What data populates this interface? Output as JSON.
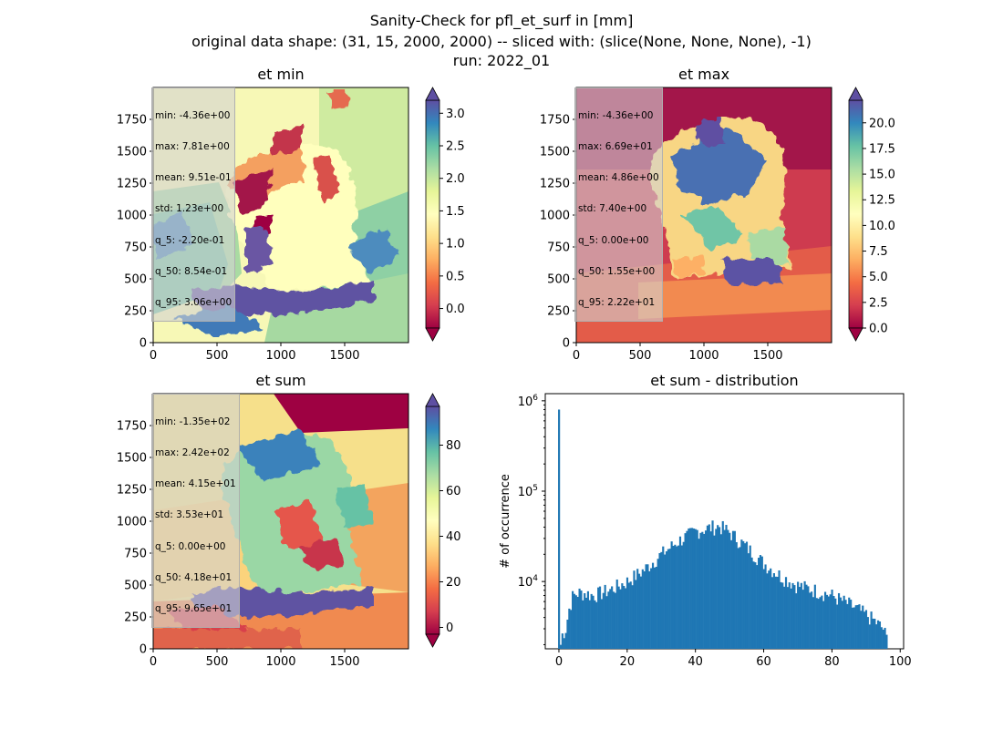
{
  "figure": {
    "title_lines": [
      "Sanity-Check for pfl_et_surf in [mm]",
      "original data shape: (31, 15, 2000, 2000) -- sliced with: (slice(None, None, None), -1)",
      "run: 2022_01"
    ]
  },
  "chart_data": [
    {
      "type": "heatmap",
      "title": "et min",
      "colormap": "Spectral",
      "xlim": [
        0,
        2000
      ],
      "ylim": [
        0,
        2000
      ],
      "xticks": [
        "0",
        "500",
        "1000",
        "1500"
      ],
      "yticks": [
        "0",
        "250",
        "500",
        "750",
        "1000",
        "1250",
        "1500",
        "1750"
      ],
      "colorbar": {
        "vmin": -0.3,
        "vmax": 3.2,
        "extend": "both",
        "ticks": [
          0.0,
          0.5,
          1.0,
          1.5,
          2.0,
          2.5,
          3.0
        ],
        "tick_labels": [
          "0.0",
          "0.5",
          "1.0",
          "1.5",
          "2.0",
          "2.5",
          "3.0"
        ]
      },
      "stats": [
        "min: -4.36e+00",
        "max: 7.81e+00",
        "mean: 9.51e-01",
        "std: 1.23e+00",
        "q_5: -2.20e-01",
        "q_50: 8.54e-01",
        "q_95: 3.06e+00"
      ]
    },
    {
      "type": "heatmap",
      "title": "et max",
      "colormap": "Spectral",
      "xlim": [
        0,
        2000
      ],
      "ylim": [
        0,
        2000
      ],
      "xticks": [
        "0",
        "500",
        "1000",
        "1500"
      ],
      "yticks": [
        "0",
        "250",
        "500",
        "750",
        "1000",
        "1250",
        "1500",
        "1750"
      ],
      "colorbar": {
        "vmin": 0.0,
        "vmax": 22.2,
        "extend": "both",
        "ticks": [
          0.0,
          2.5,
          5.0,
          7.5,
          10.0,
          12.5,
          15.0,
          17.5,
          20.0
        ],
        "tick_labels": [
          "0.0",
          "2.5",
          "5.0",
          "7.5",
          "10.0",
          "12.5",
          "15.0",
          "17.5",
          "20.0"
        ]
      },
      "stats": [
        "min: -4.36e+00",
        "max: 6.69e+01",
        "mean: 4.86e+00",
        "std: 7.40e+00",
        "q_5: 0.00e+00",
        "q_50: 1.55e+00",
        "q_95: 2.22e+01"
      ]
    },
    {
      "type": "heatmap",
      "title": "et sum",
      "colormap": "Spectral",
      "xlim": [
        0,
        2000
      ],
      "ylim": [
        0,
        2000
      ],
      "xticks": [
        "0",
        "500",
        "1000",
        "1500"
      ],
      "yticks": [
        "0",
        "250",
        "500",
        "750",
        "1000",
        "1250",
        "1500",
        "1750"
      ],
      "colorbar": {
        "vmin": -3,
        "vmax": 97,
        "extend": "both",
        "ticks": [
          0,
          20,
          40,
          60,
          80
        ],
        "tick_labels": [
          "0",
          "20",
          "40",
          "60",
          "80"
        ]
      },
      "stats": [
        "min: -1.35e+02",
        "max: 2.42e+02",
        "mean: 4.15e+01",
        "std: 3.53e+01",
        "q_5: 0.00e+00",
        "q_50: 4.18e+01",
        "q_95: 9.65e+01"
      ]
    },
    {
      "type": "bar",
      "title": "et sum - distribution",
      "ylabel": "# of occurrence",
      "xlabel": "",
      "yscale": "log",
      "ylim": [
        1800,
        1200000
      ],
      "xlim": [
        -4,
        101
      ],
      "xticks": [
        0,
        20,
        40,
        60,
        80,
        100
      ],
      "yticks_major": [
        10000,
        100000,
        1000000
      ],
      "ytick_labels": [
        "10^4",
        "10^5",
        "10^6"
      ],
      "color": "#1f77b4",
      "bin_width": 0.5,
      "profile_x": [
        0,
        0.5,
        1,
        2,
        3,
        4,
        5,
        6,
        8,
        10,
        15,
        20,
        25,
        30,
        35,
        40,
        45,
        47,
        50,
        55,
        60,
        65,
        70,
        75,
        80,
        85,
        88,
        92,
        95,
        96.5
      ],
      "profile_y": [
        800000,
        2000,
        2600,
        3000,
        5000,
        6800,
        7300,
        7500,
        7400,
        7000,
        8100,
        10000,
        13500,
        20000,
        28000,
        36000,
        40000,
        41000,
        35000,
        24000,
        16000,
        11500,
        9000,
        8000,
        7000,
        5600,
        4800,
        3800,
        3000,
        2100
      ]
    }
  ]
}
